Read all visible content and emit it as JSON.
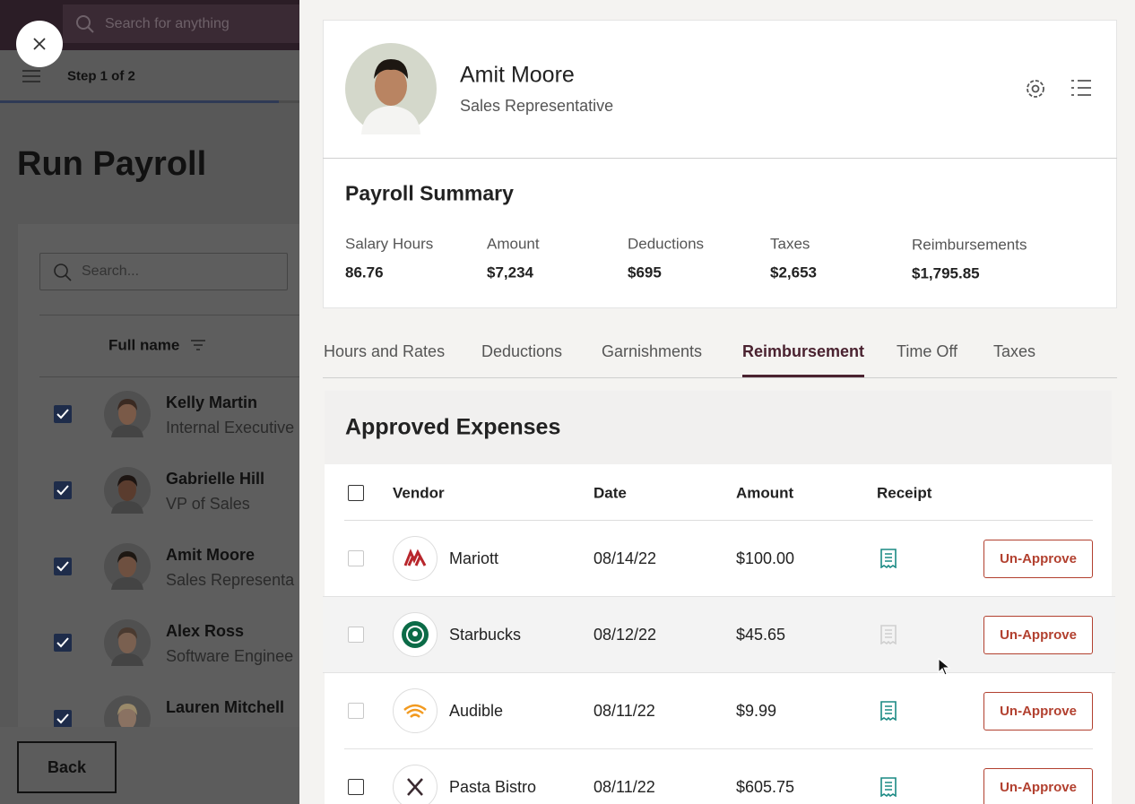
{
  "background": {
    "search_placeholder": "Search for anything",
    "step": "Step 1 of 2",
    "title": "Run Payroll",
    "list_search_placeholder": "Search...",
    "column": "Full name",
    "employees": [
      {
        "name": "Kelly Martin",
        "title": "Internal Executive",
        "checked": true
      },
      {
        "name": "Gabrielle Hill",
        "title": "VP of Sales",
        "checked": true
      },
      {
        "name": "Amit Moore",
        "title": "Sales Representa",
        "checked": true
      },
      {
        "name": "Alex Ross",
        "title": "Software Enginee",
        "checked": true
      },
      {
        "name": "Lauren Mitchell",
        "title": "",
        "checked": true
      }
    ],
    "back": "Back"
  },
  "profile": {
    "name": "Amit Moore",
    "title": "Sales Representative"
  },
  "summary": {
    "title": "Payroll Summary",
    "items": [
      {
        "label": "Salary Hours",
        "value": "86.76"
      },
      {
        "label": "Amount",
        "value": "$7,234"
      },
      {
        "label": "Deductions",
        "value": "$695"
      },
      {
        "label": "Taxes",
        "value": "$2,653"
      },
      {
        "label": "Reimbursements",
        "value": "$1,795.85"
      }
    ]
  },
  "tabs": [
    "Hours and Rates",
    "Deductions",
    "Garnishments",
    "Reimbursement",
    "Time Off",
    "Taxes"
  ],
  "active_tab": 3,
  "expenses": {
    "title": "Approved Expenses",
    "columns": [
      "Vendor",
      "Date",
      "Amount",
      "Receipt"
    ],
    "rows": [
      {
        "vendor": "Mariott",
        "date": "08/14/22",
        "amount": "$100.00",
        "receipt": true,
        "action": "Un-Approve"
      },
      {
        "vendor": "Starbucks",
        "date": "08/12/22",
        "amount": "$45.65",
        "receipt": false,
        "action": "Un-Approve"
      },
      {
        "vendor": "Audible",
        "date": "08/11/22",
        "amount": "$9.99",
        "receipt": true,
        "action": "Un-Approve"
      },
      {
        "vendor": "Pasta Bistro",
        "date": "08/11/22",
        "amount": "$605.75",
        "receipt": true,
        "action": "Un-Approve"
      }
    ]
  }
}
